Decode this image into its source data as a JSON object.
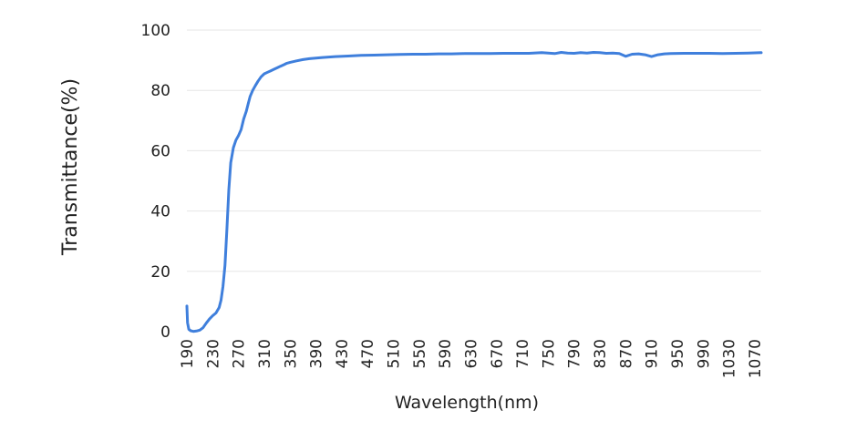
{
  "chart_data": {
    "type": "line",
    "title": "",
    "xlabel": "Wavelength(nm)",
    "ylabel": "Transmittance(%)",
    "xlim": [
      190,
      1080
    ],
    "ylim": [
      0,
      100
    ],
    "grid": true,
    "x_tick_labels": [
      "190",
      "230",
      "270",
      "310",
      "350",
      "390",
      "430",
      "470",
      "510",
      "550",
      "590",
      "630",
      "670",
      "710",
      "750",
      "790",
      "830",
      "870",
      "910",
      "950",
      "990",
      "1030",
      "1070"
    ],
    "y_tick_labels": [
      "0",
      "20",
      "40",
      "60",
      "80",
      "100"
    ],
    "series": [
      {
        "color": "#3f7fdc",
        "x": [
          190,
          191,
          193,
          196,
          200,
          205,
          210,
          215,
          220,
          225,
          230,
          235,
          240,
          243,
          246,
          249,
          252,
          255,
          258,
          262,
          266,
          270,
          274,
          278,
          282,
          285,
          288,
          292,
          296,
          300,
          305,
          310,
          315,
          320,
          325,
          330,
          335,
          340,
          345,
          350,
          360,
          370,
          380,
          390,
          400,
          420,
          440,
          460,
          480,
          500,
          520,
          540,
          560,
          580,
          600,
          620,
          640,
          660,
          680,
          700,
          720,
          740,
          760,
          770,
          780,
          790,
          800,
          810,
          820,
          830,
          840,
          850,
          860,
          870,
          880,
          890,
          900,
          910,
          920,
          930,
          940,
          960,
          980,
          1000,
          1020,
          1040,
          1060,
          1080
        ],
        "values": [
          8.5,
          3,
          0.8,
          0.3,
          0.1,
          0.2,
          0.5,
          1.3,
          2.8,
          4.2,
          5.3,
          6.2,
          8,
          10.5,
          15,
          22,
          34,
          47,
          56,
          61,
          63.5,
          65,
          67,
          70.5,
          73,
          75.5,
          78,
          80,
          81.5,
          83,
          84.5,
          85.5,
          86,
          86.5,
          87,
          87.5,
          88,
          88.5,
          89,
          89.3,
          89.8,
          90.2,
          90.5,
          90.7,
          90.9,
          91.2,
          91.4,
          91.6,
          91.7,
          91.8,
          91.9,
          92,
          92,
          92.1,
          92.1,
          92.2,
          92.2,
          92.2,
          92.3,
          92.3,
          92.3,
          92.5,
          92.2,
          92.6,
          92.4,
          92.3,
          92.5,
          92.4,
          92.6,
          92.5,
          92.3,
          92.4,
          92.2,
          91.3,
          92.0,
          92.1,
          91.8,
          91.2,
          91.8,
          92.1,
          92.2,
          92.3,
          92.3,
          92.3,
          92.2,
          92.3,
          92.4,
          92.5
        ]
      }
    ]
  }
}
